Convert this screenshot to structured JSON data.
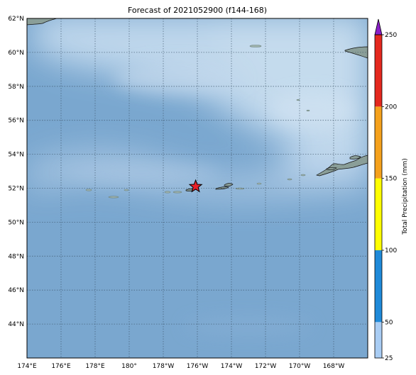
{
  "title": "Forecast of 2021052900 (f144-168)",
  "map": {
    "lon_min": 174,
    "lon_max": 194,
    "lat_min": 42,
    "lat_max": 62,
    "ocean_color": "#7aa7cf",
    "land_color": "#8a9e98",
    "marker": {
      "lon": 183.9,
      "lat": 52.1,
      "color": "#e8212a"
    },
    "lon_ticks": [
      {
        "value": 174,
        "label": "174°E"
      },
      {
        "value": 176,
        "label": "176°E"
      },
      {
        "value": 178,
        "label": "178°E"
      },
      {
        "value": 180,
        "label": "180°"
      },
      {
        "value": 182,
        "label": "178°W"
      },
      {
        "value": 184,
        "label": "176°W"
      },
      {
        "value": 186,
        "label": "174°W"
      },
      {
        "value": 188,
        "label": "172°W"
      },
      {
        "value": 190,
        "label": "170°W"
      },
      {
        "value": 192,
        "label": "168°W"
      }
    ],
    "lat_ticks": [
      {
        "value": 44,
        "label": "44°N"
      },
      {
        "value": 46,
        "label": "46°N"
      },
      {
        "value": 48,
        "label": "48°N"
      },
      {
        "value": 50,
        "label": "50°N"
      },
      {
        "value": 52,
        "label": "52°N"
      },
      {
        "value": 54,
        "label": "54°N"
      },
      {
        "value": 56,
        "label": "56°N"
      },
      {
        "value": 58,
        "label": "58°N"
      },
      {
        "value": 60,
        "label": "60°N"
      },
      {
        "value": 62,
        "label": "62°N"
      }
    ]
  },
  "colorbar": {
    "label": "Total Precipitation (mm)",
    "ticks": [
      "25",
      "50",
      "100",
      "150",
      "200",
      "250"
    ],
    "bins": [
      {
        "from": 25,
        "to": 50,
        "color": "#a9cdf4"
      },
      {
        "from": 50,
        "to": 100,
        "color": "#1f8ad9"
      },
      {
        "from": 100,
        "to": 150,
        "color": "#ffff00"
      },
      {
        "from": 150,
        "to": 200,
        "color": "#f5a11c"
      },
      {
        "from": 200,
        "to": 250,
        "color": "#e4281e"
      }
    ],
    "extend_color": "#8a1fc8"
  }
}
